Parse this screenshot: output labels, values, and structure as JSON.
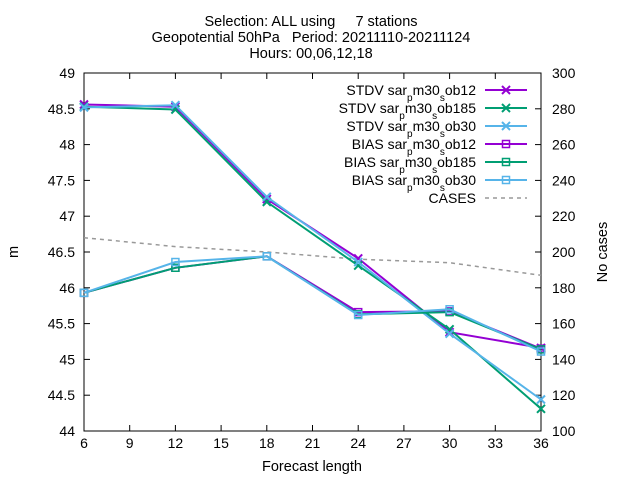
{
  "chart_data": {
    "type": "line",
    "title": [
      "Selection: ALL using     7 stations",
      "Geopotential 50hPa   Period: 20211110-20211124",
      "Hours: 00,06,12,18"
    ],
    "xlabel": "Forecast length",
    "ylabel": "m",
    "y2label": "No cases",
    "xlim": [
      6,
      36
    ],
    "ylim": [
      44,
      49
    ],
    "y2lim": [
      100,
      300
    ],
    "xticks": [
      "6",
      "9",
      "12",
      "15",
      "18",
      "21",
      "24",
      "27",
      "30",
      "33",
      "36"
    ],
    "yticks": [
      "44",
      "44.5",
      "45",
      "45.5",
      "46",
      "46.5",
      "47",
      "47.5",
      "48",
      "48.5",
      "49"
    ],
    "y2ticks": [
      "100",
      "120",
      "140",
      "160",
      "180",
      "200",
      "220",
      "240",
      "260",
      "280",
      "300"
    ],
    "grid": false,
    "legend_position": "top-right",
    "x": [
      6,
      12,
      18,
      24,
      30,
      36
    ],
    "series": [
      {
        "name": "STDV sar_pm30_sob12",
        "legend_parts": [
          "STDV sar",
          "p",
          "m30",
          "s",
          "ob12"
        ],
        "axis": "y1",
        "marker": "x",
        "color": "#9400d3",
        "values": [
          48.56,
          48.53,
          47.24,
          46.41,
          45.38,
          45.16
        ]
      },
      {
        "name": "STDV sar_pm30_sob185",
        "legend_parts": [
          "STDV sar",
          "p",
          "m30",
          "s",
          "ob185"
        ],
        "axis": "y1",
        "marker": "x",
        "color": "#009e73",
        "values": [
          48.53,
          48.49,
          47.2,
          46.31,
          45.42,
          44.31
        ]
      },
      {
        "name": "STDV sar_pm30_sob30",
        "legend_parts": [
          "STDV sar",
          "p",
          "m30",
          "s",
          "ob30"
        ],
        "axis": "y1",
        "marker": "x",
        "color": "#56b4e9",
        "values": [
          48.52,
          48.55,
          47.27,
          46.36,
          45.36,
          44.44
        ]
      },
      {
        "name": "BIAS sar_pm30_sob12",
        "legend_parts": [
          "BIAS sar",
          "p",
          "m30",
          "s",
          "ob12"
        ],
        "axis": "y1",
        "marker": "square",
        "color": "#9400d3",
        "values": [
          45.93,
          46.28,
          46.44,
          45.66,
          45.67,
          45.15
        ]
      },
      {
        "name": "BIAS sar_pm30_sob185",
        "legend_parts": [
          "BIAS sar",
          "p",
          "m30",
          "s",
          "ob185"
        ],
        "axis": "y1",
        "marker": "square",
        "color": "#009e73",
        "values": [
          45.93,
          46.28,
          46.44,
          45.63,
          45.66,
          45.14
        ]
      },
      {
        "name": "BIAS sar_pm30_sob30",
        "legend_parts": [
          "BIAS sar",
          "p",
          "m30",
          "s",
          "ob30"
        ],
        "axis": "y1",
        "marker": "square",
        "color": "#56b4e9",
        "values": [
          45.93,
          46.36,
          46.44,
          45.62,
          45.7,
          45.11
        ]
      },
      {
        "name": "CASES",
        "legend_parts": [
          "CASES"
        ],
        "axis": "y2",
        "marker": "none",
        "dashed": true,
        "color": "#999999",
        "values": [
          208,
          203,
          200,
          196,
          194,
          187
        ]
      }
    ]
  }
}
